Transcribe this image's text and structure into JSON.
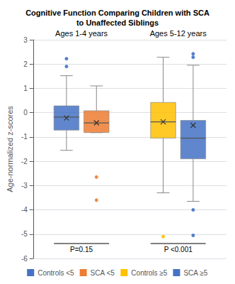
{
  "chart_data": {
    "type": "boxplot",
    "title": "Cognitive Function Comparing Children with SCA\nto Unaffected Siblings",
    "ylabel": "Age-normalized z-scores",
    "ylim": [
      -6,
      3
    ],
    "yticks": [
      -6,
      -5,
      -4,
      -3,
      -2,
      -1,
      0,
      1,
      2,
      3
    ],
    "grid": true,
    "legend": "bottom",
    "tick_labels": "y",
    "groups": [
      {
        "label": "Ages 1-4 years",
        "p_value": "P=0.15",
        "series": [
          "Controls <5",
          "SCA <5"
        ]
      },
      {
        "label": "Ages 5-12 years",
        "p_value": "P <0.001",
        "series": [
          "Controls ≥5",
          "SCA ≥5"
        ]
      }
    ],
    "series": [
      {
        "name": "Controls <5",
        "color": "#4472C4",
        "whislo": -1.55,
        "q1": -0.72,
        "median": -0.18,
        "q3": 0.28,
        "whishi": 1.52,
        "mean": -0.22,
        "fliers": [
          1.9,
          2.22
        ]
      },
      {
        "name": "SCA <5",
        "color": "#ED7D31",
        "whislo": -0.82,
        "q1": -0.82,
        "median": -0.42,
        "q3": 0.08,
        "whishi": 1.1,
        "mean": -0.42,
        "fliers": [
          -2.65,
          -3.6
        ]
      },
      {
        "name": "Controls ≥5",
        "color": "#FFC000",
        "whislo": -3.3,
        "q1": -1.05,
        "median": -0.38,
        "q3": 0.42,
        "whishi": 2.28,
        "mean": -0.38,
        "fliers": [
          -5.1
        ]
      },
      {
        "name": "SCA ≥5",
        "color": "#4472C4",
        "whislo": -3.65,
        "q1": -1.9,
        "median": -1.05,
        "q3": -0.32,
        "whishi": 1.95,
        "mean": -0.52,
        "fliers": [
          2.28,
          2.42,
          -4.0,
          -5.05
        ]
      }
    ]
  }
}
